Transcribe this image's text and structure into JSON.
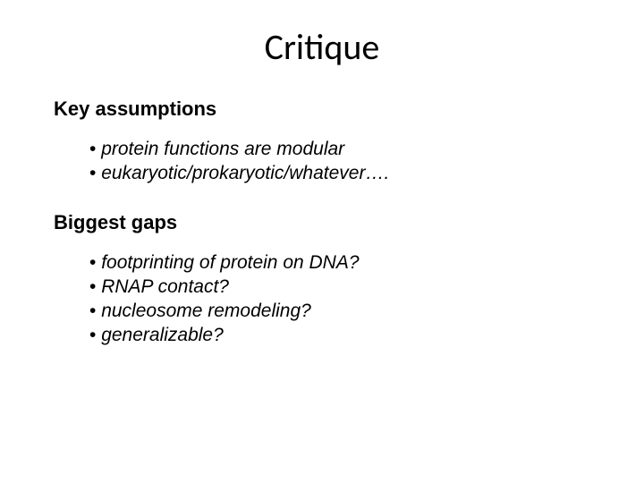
{
  "slide": {
    "title": "Critique",
    "sections": [
      {
        "heading": "Key assumptions",
        "bullets": [
          "protein functions are modular",
          "eukaryotic/prokaryotic/whatever…."
        ]
      },
      {
        "heading": "Biggest gaps",
        "bullets": [
          "footprinting of protein on DNA?",
          "RNAP contact?",
          "nucleosome remodeling?",
          "generalizable?"
        ]
      }
    ]
  },
  "style": {
    "background_color": "#ffffff",
    "text_color": "#000000",
    "title_fontsize": 40,
    "heading_fontsize": 22,
    "bullet_fontsize": 21
  }
}
